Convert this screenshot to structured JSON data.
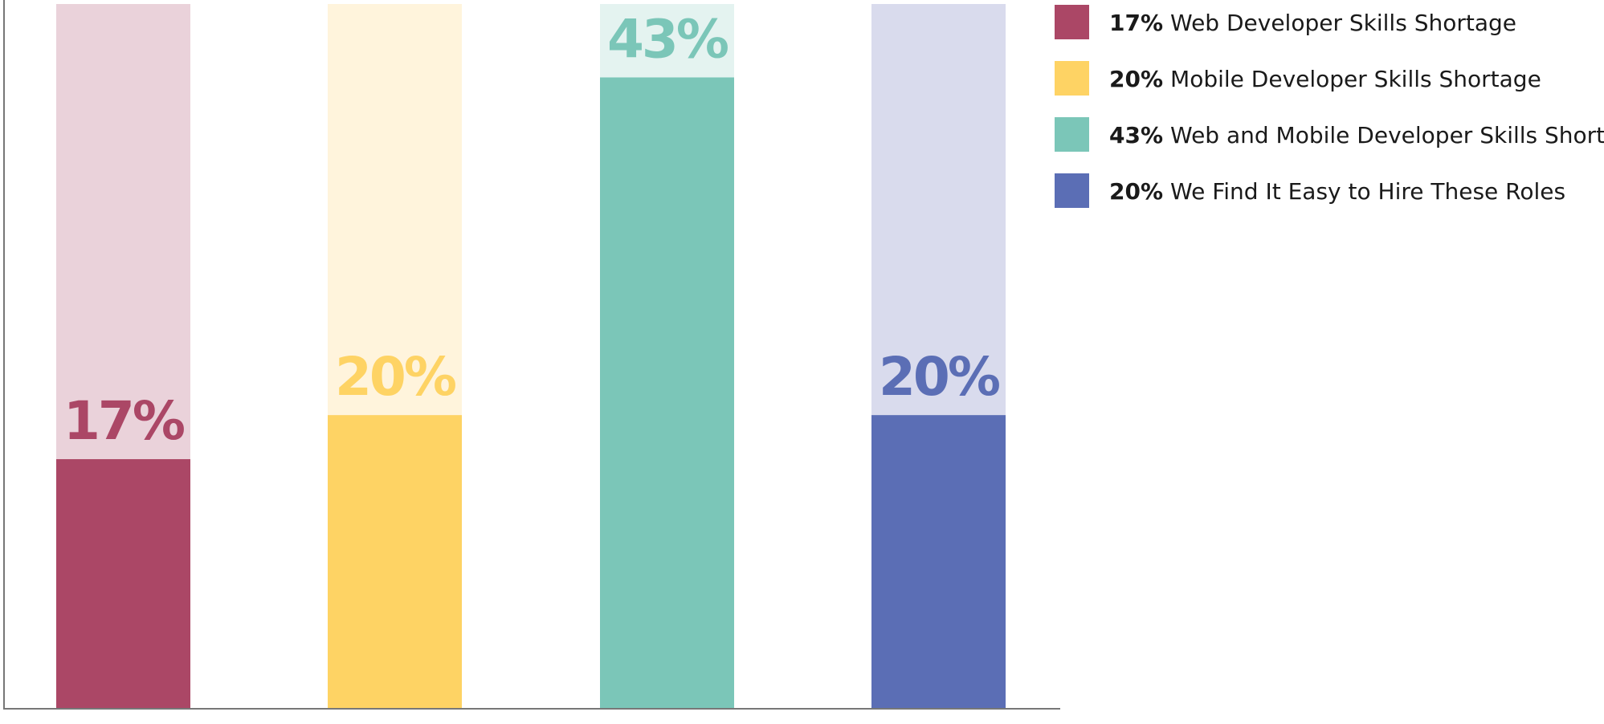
{
  "chart_data": {
    "type": "bar",
    "categories": [
      "",
      "",
      "",
      ""
    ],
    "values": [
      17,
      20,
      43,
      20
    ],
    "value_labels": [
      "17%",
      "20%",
      "43%",
      "20%"
    ],
    "ylim": [
      0,
      48
    ],
    "grid": false,
    "legend_placement": "top-right",
    "legend": [
      {
        "pct": "17%",
        "text": "Web Developer Skills Shortage",
        "color": "#ab4766"
      },
      {
        "pct": "20%",
        "text": "Mobile Developer Skills Shortage",
        "color": "#fed364"
      },
      {
        "pct": "43%",
        "text": "Web and Mobile Developer Skills Shortage",
        "color": "#7bc6b8"
      },
      {
        "pct": "20%",
        "text": "We Find It Easy to Hire These Roles",
        "color": "#5b6eb5"
      }
    ],
    "bar_colors": [
      "#ab4766",
      "#fed364",
      "#7bc6b8",
      "#5b6eb5"
    ],
    "track_colors": [
      "#ead2da",
      "#fff4dc",
      "#e4f3f0",
      "#d9dbed"
    ]
  }
}
